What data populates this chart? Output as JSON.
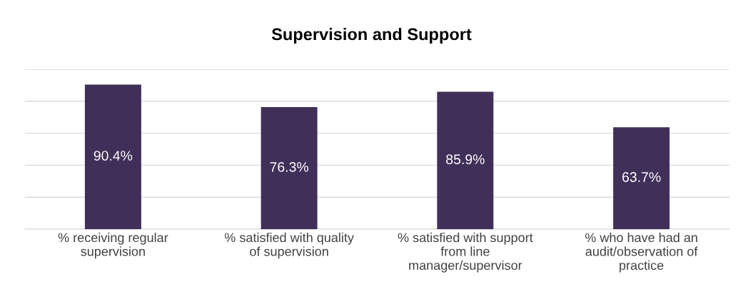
{
  "chart_data": {
    "type": "bar",
    "title": "Supervision and Support",
    "categories": [
      "% receiving regular supervision",
      "% satisfied with quality of supervision",
      "% satisfied with support from line manager/supervisor",
      "% who have had an audit/observation of practice"
    ],
    "values": [
      90.4,
      76.3,
      85.9,
      63.7
    ],
    "color": "#403059",
    "value_labels": [
      "90.4%",
      "76.3%",
      "85.9%",
      "63.7%"
    ],
    "ylim": [
      0,
      100
    ],
    "yticks": [
      {
        "value": 0,
        "label": null
      },
      {
        "value": 20,
        "label": null
      },
      {
        "value": 40,
        "label": null
      },
      {
        "value": 60,
        "label": null
      },
      {
        "value": 80,
        "label": null
      },
      {
        "value": 100,
        "label": null
      }
    ],
    "grid": "y",
    "tick_labels": "x"
  }
}
